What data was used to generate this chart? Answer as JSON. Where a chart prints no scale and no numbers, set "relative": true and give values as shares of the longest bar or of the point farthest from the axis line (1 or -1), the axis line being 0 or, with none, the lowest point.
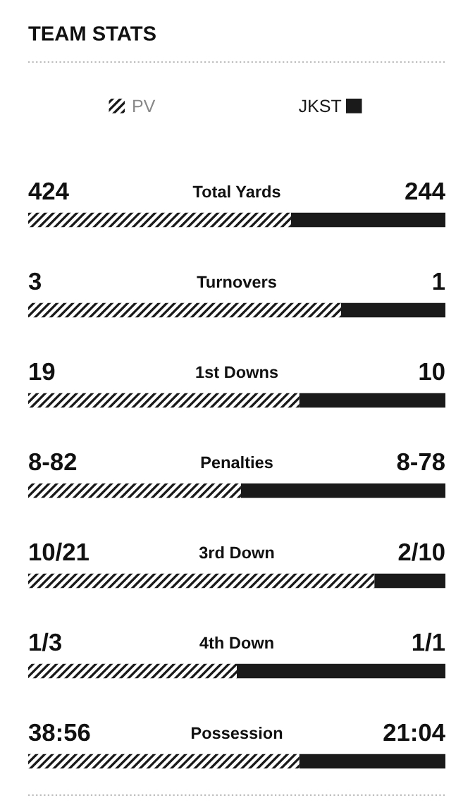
{
  "chart_data": {
    "type": "bar",
    "title": "TEAM STATS",
    "orientation": "horizontal",
    "stacked": true,
    "relative": true,
    "legend": "top",
    "categories": [
      "Total Yards",
      "Turnovers",
      "1st Downs",
      "Penalties",
      "3rd Down",
      "4th Down",
      "Possession"
    ],
    "series": [
      {
        "name": "PV",
        "color": "#1a1a1a",
        "values": [
          0.63,
          0.75,
          0.65,
          0.51,
          0.83,
          0.5,
          0.65
        ]
      },
      {
        "name": "JKST",
        "color": "#1a1a1a",
        "values": [
          0.37,
          0.25,
          0.35,
          0.49,
          0.17,
          0.5,
          0.35
        ]
      }
    ],
    "annotations": [
      "424",
      "244",
      "3",
      "1",
      "19",
      "10",
      "8-82",
      "8-78",
      "10/21",
      "2/10",
      "1/3",
      "1/1",
      "38:56",
      "21:04"
    ]
  }
}
